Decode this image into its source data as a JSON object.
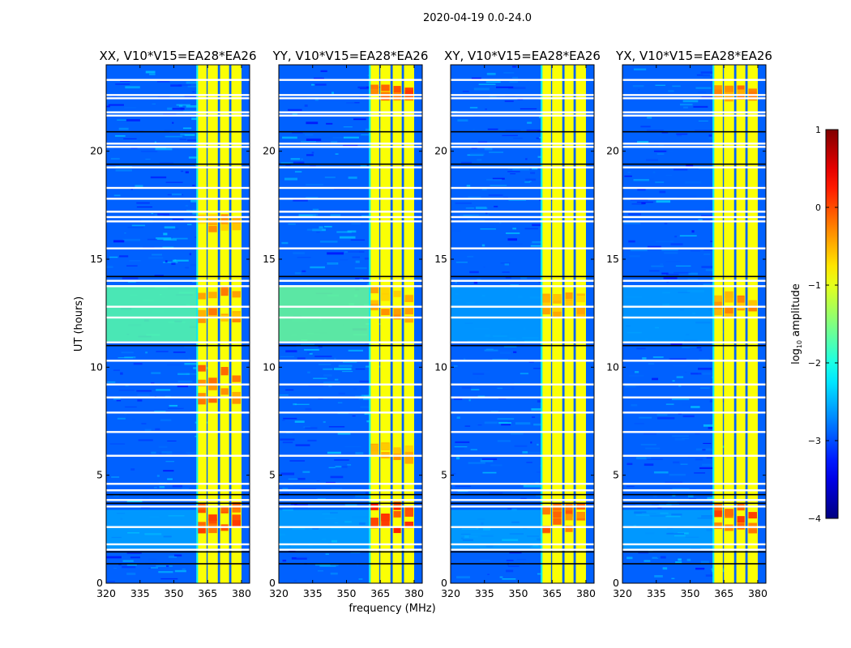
{
  "chart_data": {
    "type": "heatmap",
    "suptitle": "2020-04-19 0.0-24.0",
    "xlabel": "frequency (MHz)",
    "ylabel": "UT (hours)",
    "xlim": [
      320,
      383.6
    ],
    "ylim": [
      0,
      24
    ],
    "xticks": [
      "320",
      "335",
      "350",
      "365",
      "380"
    ],
    "xtick_values": [
      320,
      335,
      350,
      365,
      380
    ],
    "yticks": [
      "0",
      "5",
      "10",
      "15",
      "20"
    ],
    "ytick_values": [
      0,
      5,
      10,
      15,
      20
    ],
    "colorbar": {
      "label": "log",
      "label_sub": "10",
      "label_rest": " amplitude",
      "range": [
        -4,
        1
      ],
      "ticks": [
        "1",
        "0",
        "−1",
        "−2",
        "−3",
        "−4"
      ],
      "tick_values": [
        1,
        0,
        -1,
        -2,
        -3,
        -4
      ],
      "colormap": "jet"
    },
    "background_level": -2.9,
    "bright_band_columns_mhz": [
      [
        360,
        364.5
      ],
      [
        365,
        369.5
      ],
      [
        370.5,
        374.5
      ],
      [
        375.5,
        380
      ]
    ],
    "bright_band_level": -0.9,
    "flagged_rows_hours": [
      23.3,
      22.6,
      22.45,
      21.8,
      21.65,
      20.35,
      20.2,
      19.25,
      18.3,
      17.8,
      17.2,
      16.95,
      16.75,
      15.5,
      14.0,
      13.75,
      12.8,
      12.3,
      11.15,
      10.3,
      9.2,
      8.6,
      7.9,
      7.0,
      5.9,
      4.6,
      4.3,
      3.85,
      3.55,
      2.6,
      1.8,
      1.55
    ],
    "zero_rows_hours": [
      20.9,
      19.4,
      14.2,
      11.0,
      4.1,
      3.7,
      1.45,
      0.9
    ],
    "panels": [
      {
        "title": "XX, V10*V15=EA28*EA26",
        "low_freq_region_11_14h_level": -1.7,
        "hot_spots": [
          {
            "t": [
              2.3,
              3.5
            ],
            "level": -0.1
          },
          {
            "t": [
              8.2,
              9.8
            ],
            "level": -0.3
          },
          {
            "t": [
              12.0,
              13.5
            ],
            "level": -0.4
          },
          {
            "t": [
              16.2,
              16.8
            ],
            "level": -0.5
          }
        ]
      },
      {
        "title": "YY, V10*V15=EA28*EA26",
        "low_freq_region_11_14h_level": -1.6,
        "hot_spots": [
          {
            "t": [
              2.3,
              3.5
            ],
            "level": 0.1
          },
          {
            "t": [
              22.3,
              22.8
            ],
            "level": -0.1
          },
          {
            "t": [
              12.0,
              13.5
            ],
            "level": -0.5
          },
          {
            "t": [
              5.5,
              6.5
            ],
            "level": -0.5
          }
        ]
      },
      {
        "title": "XY, V10*V15=EA28*EA26",
        "low_freq_region_11_14h_level": -2.6,
        "hot_spots": [
          {
            "t": [
              2.3,
              3.5
            ],
            "level": -0.2
          },
          {
            "t": [
              12.2,
              13.3
            ],
            "level": -0.6
          }
        ]
      },
      {
        "title": "YX, V10*V15=EA28*EA26",
        "low_freq_region_11_14h_level": -2.6,
        "hot_spots": [
          {
            "t": [
              2.3,
              3.5
            ],
            "level": -0.1
          },
          {
            "t": [
              12.2,
              13.3
            ],
            "level": -0.4
          },
          {
            "t": [
              22.3,
              22.8
            ],
            "level": -0.3
          }
        ]
      }
    ]
  }
}
